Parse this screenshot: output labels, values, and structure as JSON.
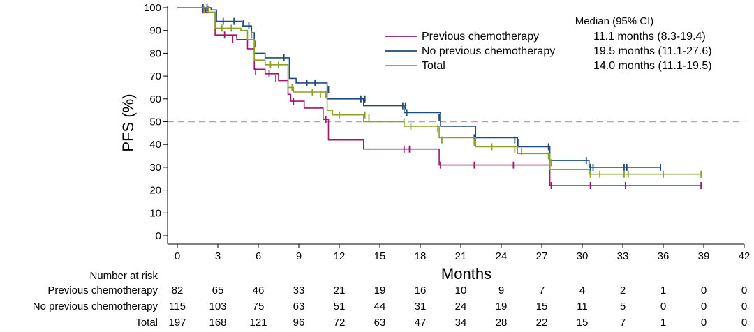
{
  "chart_data": {
    "type": "line",
    "subtype": "kaplan-meier-step",
    "xlabel": "Months",
    "ylabel": "PFS (%)",
    "xlim": [
      0,
      42
    ],
    "ylim": [
      0,
      100
    ],
    "xticks": [
      0,
      3,
      6,
      9,
      12,
      15,
      18,
      21,
      24,
      27,
      30,
      33,
      36,
      39,
      42
    ],
    "yticks": [
      0,
      10,
      20,
      30,
      40,
      50,
      60,
      70,
      80,
      90,
      100
    ],
    "reference_line": {
      "y": 50,
      "style": "dashed"
    },
    "legend": {
      "position": "top-right",
      "header": "Median (95% CI)",
      "entries": [
        {
          "name": "Previous chemotherapy",
          "median": "11.1 months (8.3-19.4)"
        },
        {
          "name": "No previous chemotherapy",
          "median": "19.5 months (11.1-27.6)"
        },
        {
          "name": "Total",
          "median": "14.0 months (11.1-19.5)"
        }
      ]
    },
    "series": [
      {
        "name": "Previous chemotherapy",
        "color": "#a0166f",
        "steps": [
          [
            0,
            100
          ],
          [
            2.1,
            98
          ],
          [
            2.8,
            88
          ],
          [
            4.4,
            86
          ],
          [
            5.2,
            82
          ],
          [
            5.7,
            73
          ],
          [
            6.5,
            71
          ],
          [
            7.5,
            68
          ],
          [
            8.2,
            62
          ],
          [
            8.4,
            59
          ],
          [
            9.4,
            56
          ],
          [
            10.8,
            51
          ],
          [
            11.2,
            42
          ],
          [
            13.8,
            38
          ],
          [
            19.4,
            31
          ],
          [
            27.6,
            22
          ],
          [
            38.8,
            22
          ]
        ],
        "censored": [
          [
            1.9,
            99
          ],
          [
            2.3,
            99
          ],
          [
            3.5,
            88
          ],
          [
            4.1,
            86
          ],
          [
            5.8,
            72
          ],
          [
            6.8,
            71
          ],
          [
            7.3,
            69
          ],
          [
            8.6,
            59
          ],
          [
            11.0,
            51
          ],
          [
            16.8,
            38
          ],
          [
            17.2,
            38
          ],
          [
            19.5,
            31
          ],
          [
            22.0,
            31
          ],
          [
            24.9,
            31
          ],
          [
            27.7,
            22
          ],
          [
            30.6,
            22
          ],
          [
            33.2,
            22
          ],
          [
            38.8,
            22
          ]
        ]
      },
      {
        "name": "No previous chemotherapy",
        "color": "#1f4b7a",
        "steps": [
          [
            0,
            100
          ],
          [
            2.5,
            99
          ],
          [
            2.9,
            94
          ],
          [
            4.8,
            92
          ],
          [
            5.5,
            89
          ],
          [
            5.7,
            80
          ],
          [
            6.5,
            78
          ],
          [
            8.3,
            69
          ],
          [
            8.8,
            67
          ],
          [
            11.1,
            60
          ],
          [
            13.8,
            57
          ],
          [
            16.8,
            54
          ],
          [
            19.5,
            48
          ],
          [
            22.1,
            43
          ],
          [
            25.2,
            39
          ],
          [
            27.6,
            33
          ],
          [
            30.5,
            30
          ],
          [
            35.8,
            30
          ]
        ],
        "censored": [
          [
            1.9,
            100
          ],
          [
            2.2,
            100
          ],
          [
            3.4,
            94
          ],
          [
            4.2,
            94
          ],
          [
            4.9,
            93
          ],
          [
            5.3,
            92
          ],
          [
            5.8,
            84
          ],
          [
            7.9,
            78
          ],
          [
            9.6,
            67
          ],
          [
            10.2,
            67
          ],
          [
            11.2,
            64
          ],
          [
            13.6,
            60
          ],
          [
            13.9,
            60
          ],
          [
            16.7,
            57
          ],
          [
            16.9,
            57
          ],
          [
            17.0,
            54
          ],
          [
            19.4,
            52
          ],
          [
            22.0,
            43
          ],
          [
            25.0,
            42
          ],
          [
            25.3,
            41
          ],
          [
            27.5,
            39
          ],
          [
            30.3,
            33
          ],
          [
            30.6,
            30
          ],
          [
            30.8,
            30
          ],
          [
            33.1,
            30
          ],
          [
            33.3,
            30
          ],
          [
            35.8,
            30
          ]
        ]
      },
      {
        "name": "Total",
        "color": "#8aa12a",
        "steps": [
          [
            0,
            100
          ],
          [
            2.3,
            98
          ],
          [
            2.8,
            91
          ],
          [
            4.7,
            90
          ],
          [
            5.2,
            86
          ],
          [
            5.7,
            77
          ],
          [
            6.5,
            75
          ],
          [
            8.2,
            65
          ],
          [
            8.6,
            63
          ],
          [
            11.1,
            55
          ],
          [
            11.5,
            53
          ],
          [
            13.8,
            50
          ],
          [
            16.8,
            48
          ],
          [
            19.4,
            43
          ],
          [
            22.1,
            39
          ],
          [
            25.2,
            36
          ],
          [
            27.6,
            29
          ],
          [
            30.5,
            27
          ],
          [
            38.8,
            27
          ]
        ],
        "censored": [
          [
            2.0,
            99
          ],
          [
            3.3,
            91
          ],
          [
            4.0,
            91
          ],
          [
            5.5,
            88
          ],
          [
            6.9,
            75
          ],
          [
            7.5,
            75
          ],
          [
            8.5,
            65
          ],
          [
            10.0,
            63
          ],
          [
            10.6,
            62
          ],
          [
            11.0,
            62
          ],
          [
            12.0,
            53
          ],
          [
            13.9,
            53
          ],
          [
            14.2,
            52
          ],
          [
            16.8,
            50
          ],
          [
            17.3,
            48
          ],
          [
            19.3,
            47
          ],
          [
            19.6,
            42
          ],
          [
            22.0,
            41
          ],
          [
            23.3,
            39
          ],
          [
            25.0,
            38
          ],
          [
            25.5,
            37
          ],
          [
            27.5,
            35
          ],
          [
            27.7,
            32
          ],
          [
            30.6,
            27
          ],
          [
            31.3,
            27
          ],
          [
            33.1,
            27
          ],
          [
            33.4,
            27
          ],
          [
            36.0,
            27
          ],
          [
            38.8,
            27
          ]
        ]
      }
    ]
  },
  "risk_table": {
    "title": "Number at risk",
    "time_points": [
      0,
      3,
      6,
      9,
      12,
      15,
      18,
      21,
      24,
      27,
      30,
      33,
      36,
      39,
      42
    ],
    "rows": [
      {
        "label": "Previous chemotherapy",
        "counts": [
          "82",
          "65",
          "46",
          "33",
          "21",
          "19",
          "16",
          "10",
          "9",
          "7",
          "4",
          "2",
          "1",
          "0",
          "0"
        ]
      },
      {
        "label": "No previous chemotherapy",
        "counts": [
          "115",
          "103",
          "75",
          "63",
          "51",
          "44",
          "31",
          "24",
          "19",
          "15",
          "11",
          "5",
          "0",
          "0",
          "0"
        ]
      },
      {
        "label": "Total",
        "counts": [
          "197",
          "168",
          "121",
          "96",
          "72",
          "63",
          "47",
          "34",
          "28",
          "22",
          "15",
          "7",
          "1",
          "0",
          "0"
        ]
      }
    ]
  }
}
